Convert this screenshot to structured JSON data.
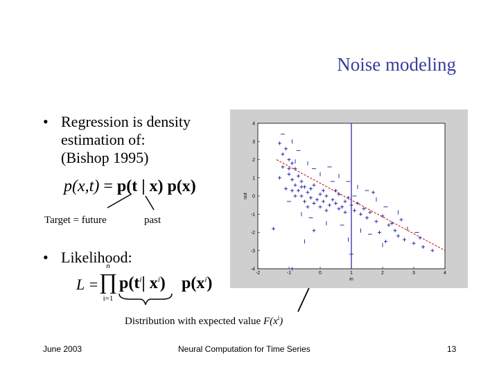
{
  "slide": {
    "title": "Noise modeling",
    "bullet1": "Regression is density estimation of: (Bishop 1995)",
    "bullet1_lines": [
      "Regression is density",
      "estimation of:",
      "(Bishop 1995)"
    ],
    "eq1": {
      "lhs": "p(x,t)",
      "eq": "=",
      "r1": "p(t | x)",
      "r2": "p(x)"
    },
    "label_target": "Target = future",
    "label_past": "past",
    "bullet2": "Likelihood:",
    "eq2": {
      "lhs": "L =",
      "prod_top": "n",
      "prod_bot": "i=1",
      "r1": "p(t",
      "r1sup": "i",
      "r1b": "| x",
      "r1bsup": "i",
      "r1c": ")",
      "r2": "p(x",
      "r2sup": "i",
      "r2c": ")"
    },
    "dist_label_prefix": "Distribution with expected value ",
    "dist_label_fx": "F(x",
    "dist_label_sup": "i",
    "dist_label_suffix": ")"
  },
  "footer": {
    "date": "June 2003",
    "course": "Neural Computation for Time Series",
    "page": "13"
  },
  "chart_data": {
    "type": "scatter",
    "xlabel": "in",
    "ylabel": "out",
    "xlim": [
      -2,
      4
    ],
    "ylim": [
      -4,
      4
    ],
    "x_ticks": [
      "-2",
      "-1",
      "0",
      "1",
      "2",
      "3",
      "4"
    ],
    "y_ticks": [
      "4",
      "3",
      "2",
      "1",
      "0",
      "-1",
      "-2",
      "-3",
      "-4"
    ],
    "vertical_line_x": 1,
    "regression_line": {
      "x": [
        -1.4,
        4
      ],
      "y": [
        2.0,
        -3.0
      ],
      "color": "#cc0000",
      "style": "dashed"
    },
    "point_color": "#1a1aa0",
    "points": [
      [
        -1.3,
        2.9
      ],
      [
        -1.1,
        2.6
      ],
      [
        -1.2,
        2.3
      ],
      [
        -1.0,
        2.0
      ],
      [
        -0.9,
        1.8
      ],
      [
        -1.2,
        1.6
      ],
      [
        -0.8,
        1.5
      ],
      [
        -1.0,
        1.2
      ],
      [
        -0.7,
        1.1
      ],
      [
        -0.9,
        0.9
      ],
      [
        -0.6,
        0.8
      ],
      [
        -0.8,
        0.6
      ],
      [
        -0.5,
        0.5
      ],
      [
        -0.7,
        0.3
      ],
      [
        -0.4,
        0.2
      ],
      [
        -0.6,
        0.0
      ],
      [
        -0.3,
        -0.1
      ],
      [
        -0.5,
        -0.3
      ],
      [
        -0.2,
        -0.4
      ],
      [
        -0.4,
        -0.6
      ],
      [
        -0.1,
        -0.2
      ],
      [
        0.0,
        0.1
      ],
      [
        0.1,
        -0.3
      ],
      [
        0.2,
        0.0
      ],
      [
        0.3,
        -0.5
      ],
      [
        0.4,
        -0.2
      ],
      [
        0.5,
        -0.4
      ],
      [
        0.6,
        0.1
      ],
      [
        0.7,
        -0.6
      ],
      [
        0.8,
        -0.3
      ],
      [
        0.9,
        -0.1
      ],
      [
        1.0,
        -0.5
      ],
      [
        1.1,
        -0.8
      ],
      [
        1.2,
        -0.4
      ],
      [
        1.3,
        -1.0
      ],
      [
        1.4,
        -0.7
      ],
      [
        1.5,
        -1.2
      ],
      [
        1.6,
        -0.9
      ],
      [
        1.8,
        -1.4
      ],
      [
        2.0,
        -1.1
      ],
      [
        2.2,
        -1.6
      ],
      [
        2.4,
        -1.9
      ],
      [
        2.5,
        -2.2
      ],
      [
        2.7,
        -2.4
      ],
      [
        3.0,
        -2.6
      ],
      [
        3.3,
        -2.8
      ],
      [
        3.6,
        -3.0
      ],
      [
        -1.5,
        -1.8
      ],
      [
        -0.2,
        -1.9
      ],
      [
        -0.9,
        -4.0
      ],
      [
        -0.8,
        0.0
      ],
      [
        -0.9,
        0.3
      ],
      [
        -0.6,
        0.5
      ],
      [
        -0.3,
        0.4
      ],
      [
        0.0,
        -0.6
      ],
      [
        0.2,
        -0.8
      ],
      [
        0.5,
        0.3
      ],
      [
        -1.1,
        0.4
      ],
      [
        -1.3,
        1.0
      ],
      [
        -1.0,
        1.5
      ],
      [
        0.6,
        -0.7
      ],
      [
        0.8,
        -0.9
      ],
      [
        0.1,
        0.3
      ],
      [
        -0.2,
        0.6
      ],
      [
        1.7,
        0.2
      ],
      [
        2.1,
        -2.5
      ],
      [
        2.3,
        -1.5
      ],
      [
        1.9,
        -2.0
      ],
      [
        2.6,
        -1.3
      ],
      [
        3.2,
        -2.3
      ]
    ],
    "noise_ticks": [
      [
        -1.2,
        3.4
      ],
      [
        -0.9,
        3.0
      ],
      [
        -0.7,
        2.5
      ],
      [
        -0.4,
        1.8
      ],
      [
        -0.2,
        1.5
      ],
      [
        0.0,
        1.2
      ],
      [
        0.3,
        1.6
      ],
      [
        0.6,
        1.1
      ],
      [
        0.9,
        0.8
      ],
      [
        1.2,
        0.5
      ],
      [
        1.5,
        0.3
      ],
      [
        1.8,
        -0.2
      ],
      [
        2.1,
        -0.6
      ],
      [
        2.5,
        -0.9
      ],
      [
        -1.0,
        -0.3
      ],
      [
        -0.6,
        -1.0
      ],
      [
        -0.3,
        -1.2
      ],
      [
        0.2,
        -1.5
      ],
      [
        0.7,
        -1.6
      ],
      [
        1.3,
        -1.9
      ],
      [
        1.6,
        -2.1
      ],
      [
        2.0,
        -2.7
      ],
      [
        1.0,
        -3.2
      ],
      [
        -0.5,
        -2.5
      ],
      [
        0.4,
        0.8
      ],
      [
        -0.8,
        1.9
      ],
      [
        1.1,
        0.0
      ],
      [
        2.8,
        -1.8
      ],
      [
        3.1,
        -2.0
      ],
      [
        0.9,
        -2.4
      ]
    ]
  }
}
